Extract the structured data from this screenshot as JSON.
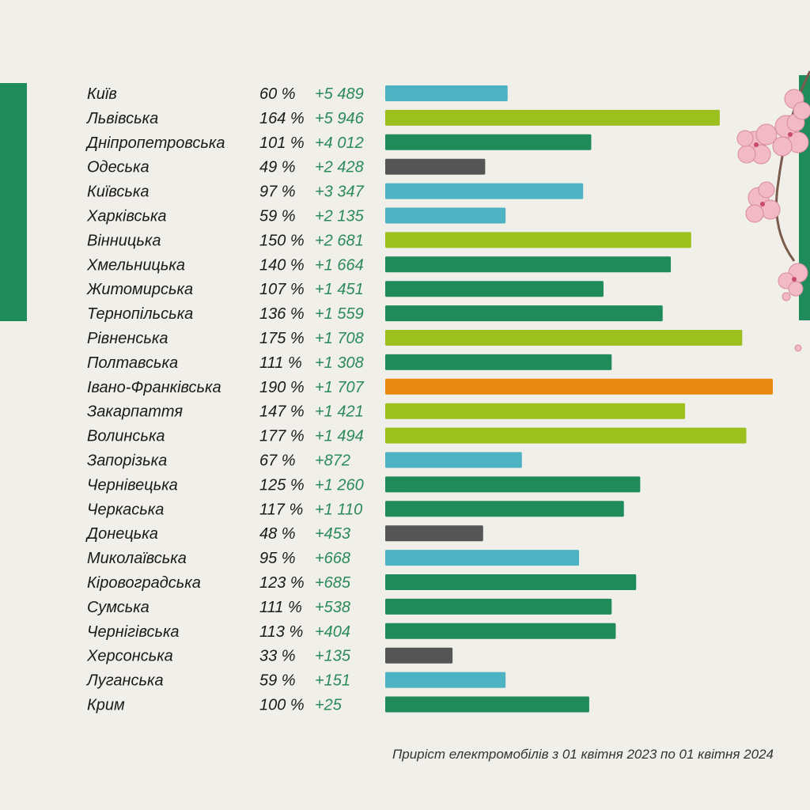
{
  "caption": "Приріст електромобілів з 01 квітня 2023 по 01 квітня  2024",
  "colors": {
    "blue": "#4db3c2",
    "lime": "#9cc11f",
    "green": "#1f8b5a",
    "gray": "#555555",
    "orange": "#ea8a12"
  },
  "chart_data": {
    "type": "bar",
    "orientation": "horizontal",
    "xlim": [
      0,
      190
    ],
    "categories": [
      "Київ",
      "Львівська",
      "Дніпропетровська",
      "Одеська",
      "Київська",
      "Харківська",
      "Вінницька",
      "Хмельницька",
      "Житомирська",
      "Тернопільська",
      "Рівненська",
      "Полтавська",
      "Івано-Франківська",
      "Закарпаття",
      "Волинська",
      "Запорізька",
      "Чернівецька",
      "Черкаська",
      "Донецька",
      "Миколаївська",
      "Кіровоградська",
      "Сумська",
      "Чернігівська",
      "Херсонська",
      "Луганська",
      "Крим"
    ],
    "values": [
      60,
      164,
      101,
      49,
      97,
      59,
      150,
      140,
      107,
      136,
      175,
      111,
      190,
      147,
      177,
      67,
      125,
      117,
      48,
      95,
      123,
      111,
      113,
      33,
      59,
      100
    ],
    "pct_labels": [
      "60 %",
      "164 %",
      "101 %",
      "49 %",
      "97 %",
      "59 %",
      "150 %",
      "140 %",
      "107 %",
      "136 %",
      "175 %",
      "111 %",
      "190 %",
      "147 %",
      "177 %",
      "67 %",
      "125 %",
      "117 %",
      "48 %",
      "95 %",
      "123 %",
      "111 %",
      "113 %",
      "33 %",
      "59 %",
      "100 %"
    ],
    "increase_labels": [
      "+5 489",
      "+5 946",
      "+4 012",
      "+2 428",
      "+3 347",
      "+2 135",
      "+2 681",
      "+1 664",
      "+1 451",
      "+1 559",
      "+1 708",
      "+1 308",
      "+1 707",
      "+1 421",
      "+1 494",
      "+872",
      "+1 260",
      "+1 110",
      "+453",
      "+668",
      "+685",
      "+538",
      "+404",
      "+135",
      "+151",
      "+25"
    ],
    "bar_colors": [
      "blue",
      "lime",
      "green",
      "gray",
      "blue",
      "blue",
      "lime",
      "green",
      "green",
      "green",
      "lime",
      "green",
      "orange",
      "lime",
      "lime",
      "blue",
      "green",
      "green",
      "gray",
      "blue",
      "green",
      "green",
      "green",
      "gray",
      "blue",
      "green"
    ]
  }
}
